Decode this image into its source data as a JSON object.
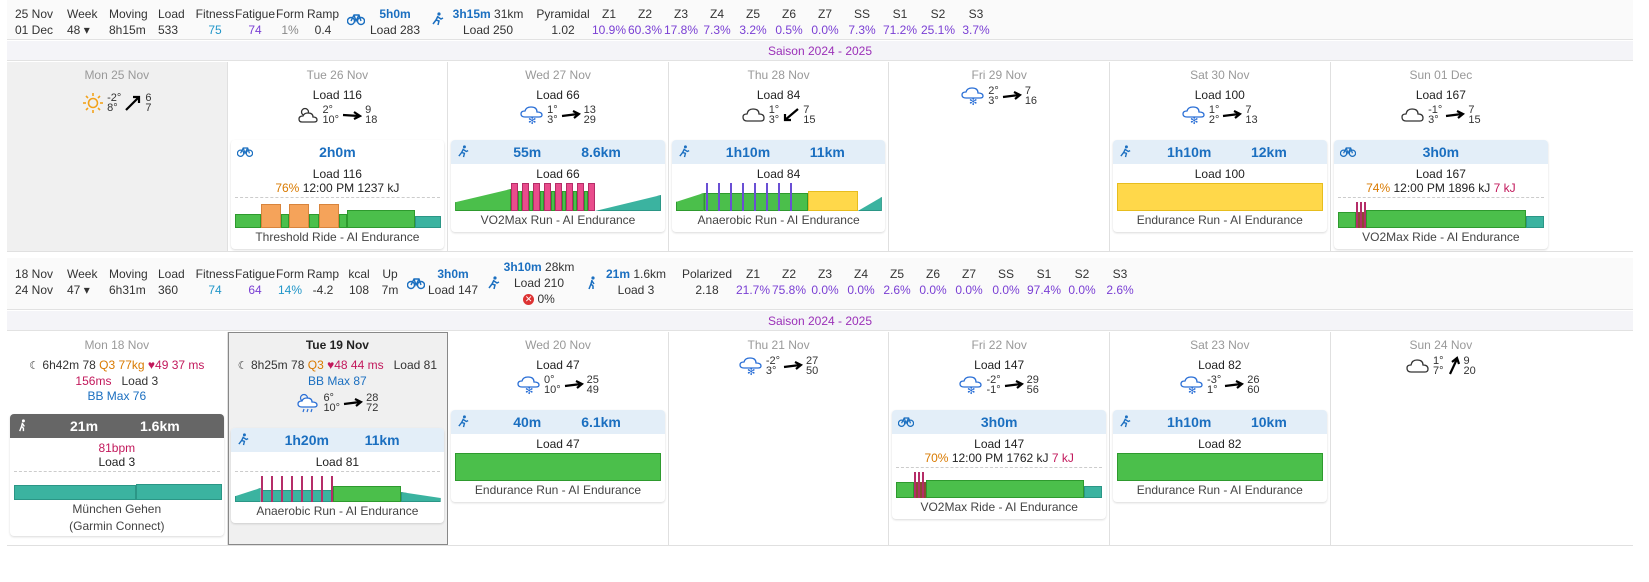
{
  "week1": {
    "date_range": [
      "25 Nov",
      "01 Dec"
    ],
    "week": {
      "label": "Week",
      "value": "48"
    },
    "moving": {
      "label": "Moving",
      "value": "8h15m"
    },
    "load": {
      "label": "Load",
      "value": "533"
    },
    "fitness": {
      "label": "Fitness",
      "value": "75"
    },
    "fatigue": {
      "label": "Fatigue",
      "value": "74"
    },
    "form": {
      "label": "Form",
      "value": "1%"
    },
    "ramp": {
      "label": "Ramp",
      "value": "0.4"
    },
    "ride": {
      "time": "5h0m",
      "load": "Load 283"
    },
    "run": {
      "time": "3h15m",
      "dist": "31km",
      "load": "Load 250"
    },
    "dist": {
      "label": "Pyramidal",
      "value": "1.02"
    },
    "zones": [
      {
        "z": "Z1",
        "v": "10.9%"
      },
      {
        "z": "Z2",
        "v": "60.3%"
      },
      {
        "z": "Z3",
        "v": "17.8%"
      },
      {
        "z": "Z4",
        "v": "7.3%"
      },
      {
        "z": "Z5",
        "v": "3.2%"
      },
      {
        "z": "Z6",
        "v": "0.5%"
      },
      {
        "z": "Z7",
        "v": "0.0%"
      },
      {
        "z": "SS",
        "v": "7.3%"
      },
      {
        "z": "S1",
        "v": "71.2%"
      },
      {
        "z": "S2",
        "v": "25.1%"
      },
      {
        "z": "S3",
        "v": "3.7%"
      }
    ],
    "season": "Saison 2024 - 2025",
    "days": [
      {
        "name": "Mon 25 Nov",
        "load": "",
        "temp": [
          "-2°",
          "8°"
        ],
        "wind": [
          "6",
          "7"
        ]
      },
      {
        "name": "Tue 26 Nov",
        "load": "Load 116",
        "temp": [
          "2°",
          "10°"
        ],
        "wind": [
          "9",
          "18"
        ]
      },
      {
        "name": "Wed 27 Nov",
        "load": "Load 66",
        "temp": [
          "1°",
          "3°"
        ],
        "wind": [
          "13",
          "29"
        ]
      },
      {
        "name": "Thu 28 Nov",
        "load": "Load 84",
        "temp": [
          "1°",
          "3°"
        ],
        "wind": [
          "7",
          "15"
        ]
      },
      {
        "name": "Fri 29 Nov",
        "load": "",
        "temp": [
          "2°",
          "3°"
        ],
        "wind": [
          "7",
          "16"
        ]
      },
      {
        "name": "Sat 30 Nov",
        "load": "Load 100",
        "temp": [
          "1°",
          "2°"
        ],
        "wind": [
          "7",
          "13"
        ]
      },
      {
        "name": "Sun 01 Dec",
        "load": "Load 167",
        "temp": [
          "-1°",
          "3°"
        ],
        "wind": [
          "7",
          "15"
        ]
      }
    ],
    "workouts": {
      "tue": {
        "time": "2h0m",
        "load": "Load 116",
        "pct": "76%",
        "detail": "12:00 PM 1237 kJ",
        "name": "Threshold Ride - AI Endurance"
      },
      "wed": {
        "time": "55m",
        "dist": "8.6km",
        "load": "Load 66",
        "name": "VO2Max Run - AI Endurance"
      },
      "thu": {
        "time": "1h10m",
        "dist": "11km",
        "load": "Load 84",
        "name": "Anaerobic Run - AI Endurance"
      },
      "sat": {
        "time": "1h10m",
        "dist": "12km",
        "load": "Load 100",
        "name": "Endurance Run - AI Endurance"
      },
      "sun": {
        "time": "3h0m",
        "load": "Load 167",
        "pct": "74%",
        "detail": "12:00 PM 1896 kJ",
        "kj": "7 kJ",
        "name": "VO2Max Ride - AI Endurance"
      }
    }
  },
  "week2": {
    "date_range": [
      "18 Nov",
      "24 Nov"
    ],
    "week": {
      "label": "Week",
      "value": "47"
    },
    "moving": {
      "label": "Moving",
      "value": "6h31m"
    },
    "load": {
      "label": "Load",
      "value": "360"
    },
    "fitness": {
      "label": "Fitness",
      "value": "74"
    },
    "fatigue": {
      "label": "Fatigue",
      "value": "64"
    },
    "form": {
      "label": "Form",
      "value": "14%"
    },
    "ramp": {
      "label": "Ramp",
      "value": "-4.2"
    },
    "kcal": {
      "label": "kcal",
      "value": "108"
    },
    "up": {
      "label": "Up",
      "value": "7m"
    },
    "ride": {
      "time": "3h0m",
      "load": "Load 147"
    },
    "run": {
      "time": "3h10m",
      "dist": "28km",
      "load": "Load 210",
      "pct": "0%"
    },
    "walk": {
      "time": "21m",
      "dist": "1.6km",
      "load": "Load 3"
    },
    "dist": {
      "label": "Polarized",
      "value": "2.18"
    },
    "zones": [
      {
        "z": "Z1",
        "v": "21.7%"
      },
      {
        "z": "Z2",
        "v": "75.8%"
      },
      {
        "z": "Z3",
        "v": "0.0%"
      },
      {
        "z": "Z4",
        "v": "0.0%"
      },
      {
        "z": "Z5",
        "v": "2.6%"
      },
      {
        "z": "Z6",
        "v": "0.0%"
      },
      {
        "z": "Z7",
        "v": "0.0%"
      },
      {
        "z": "SS",
        "v": "0.0%"
      },
      {
        "z": "S1",
        "v": "97.4%"
      },
      {
        "z": "S2",
        "v": "0.0%"
      },
      {
        "z": "S3",
        "v": "2.6%"
      }
    ],
    "season": "Saison 2024 - 2025",
    "days": [
      {
        "name": "Mon 18 Nov",
        "load": "",
        "temp": [],
        "wind": []
      },
      {
        "name": "Tue 19 Nov",
        "load": "",
        "temp": [
          "6°",
          "10°"
        ],
        "wind": [
          "28",
          "72"
        ]
      },
      {
        "name": "Wed 20 Nov",
        "load": "Load 47",
        "temp": [
          "0°",
          "10°"
        ],
        "wind": [
          "25",
          "49"
        ]
      },
      {
        "name": "Thu 21 Nov",
        "load": "",
        "temp": [
          "-2°",
          "3°"
        ],
        "wind": [
          "27",
          "50"
        ]
      },
      {
        "name": "Fri 22 Nov",
        "load": "Load 147",
        "temp": [
          "-2°",
          "-1°"
        ],
        "wind": [
          "29",
          "56"
        ]
      },
      {
        "name": "Sat 23 Nov",
        "load": "Load 82",
        "temp": [
          "-3°",
          "1°"
        ],
        "wind": [
          "26",
          "60"
        ]
      },
      {
        "name": "Sun 24 Nov",
        "load": "",
        "temp": [
          "1°",
          "7°"
        ],
        "wind": [
          "9",
          "20"
        ]
      }
    ],
    "mon_wellness": {
      "sleep": "6h42m",
      "score": "78",
      "quality": "Q3",
      "weight": "77kg",
      "hr": "49",
      "hrv": "37 ms",
      "hrv2": "156ms",
      "load": "Load 3",
      "bb": "BB Max 76"
    },
    "tue_wellness": {
      "sleep": "8h25m",
      "score": "78",
      "quality": "Q3",
      "hr": "48",
      "hrv": "44 ms",
      "load": "Load 81",
      "bb": "BB Max 87"
    },
    "workouts": {
      "mon": {
        "time": "21m",
        "dist": "1.6km",
        "hr": "81bpm",
        "load": "Load 3",
        "name": "München Gehen",
        "source": "(Garmin Connect)"
      },
      "tue": {
        "time": "1h20m",
        "dist": "11km",
        "load": "Load 81",
        "name": "Anaerobic Run - AI Endurance"
      },
      "wed": {
        "time": "40m",
        "dist": "6.1km",
        "load": "Load 47",
        "name": "Endurance Run - AI Endurance"
      },
      "fri": {
        "time": "3h0m",
        "load": "Load 147",
        "pct": "70%",
        "detail": "12:00 PM 1762 kJ",
        "kj": "7 kJ",
        "name": "VO2Max Ride - AI Endurance"
      },
      "sat": {
        "time": "1h10m",
        "dist": "10km",
        "load": "Load 82",
        "name": "Endurance Run - AI Endurance"
      }
    }
  }
}
